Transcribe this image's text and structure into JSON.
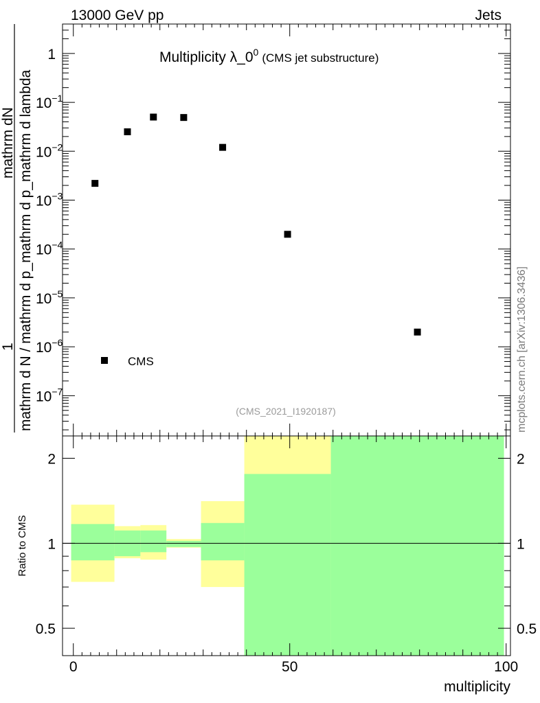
{
  "header": {
    "left": "13000 GeV pp",
    "right": "Jets"
  },
  "side_label": "mcplots.cern.ch [arXiv:1306.3436]",
  "colors": {
    "band_inner": "#9bff9b",
    "band_outer": "#ffff9b",
    "marker": "#000000"
  },
  "chart_data": [
    {
      "type": "scatter",
      "title": "Multiplicity λ_0",
      "title_superscript": "0",
      "subtitle": "(CMS jet substructure)",
      "analysis_id": "(CMS_2021_I1920187)",
      "ylabel": "1 / mathrm d N / mathrm d p_mathrm d p_mathrm d lambda · mathrm dN",
      "ylabel_numerator": "mathrm dN",
      "ylabel_denominator": "mathrm d N / mathrm d p_mathrm d p_mathrm d lambda",
      "ylabel_one": "1",
      "yscale": "log",
      "ylim": [
        1.5e-08,
        4
      ],
      "xlim": [
        -2.5,
        101
      ],
      "y_tick_labels": [
        {
          "value": 1,
          "label": "1"
        },
        {
          "value": 0.1,
          "label": "10",
          "exp": "−1"
        },
        {
          "value": 0.01,
          "label": "10",
          "exp": "−2"
        },
        {
          "value": 0.001,
          "label": "10",
          "exp": "−3"
        },
        {
          "value": 0.0001,
          "label": "10",
          "exp": "−4"
        },
        {
          "value": 1e-05,
          "label": "10",
          "exp": "−5"
        },
        {
          "value": 1e-06,
          "label": "10",
          "exp": "−6"
        },
        {
          "value": 1e-07,
          "label": "10",
          "exp": "−7"
        }
      ],
      "legend": {
        "position": "bottom-left",
        "entries": [
          "CMS"
        ]
      },
      "series": [
        {
          "name": "CMS",
          "marker": "square",
          "points": [
            {
              "x": 5,
              "y": 0.0022
            },
            {
              "x": 12.5,
              "y": 0.025
            },
            {
              "x": 18.5,
              "y": 0.05
            },
            {
              "x": 25.5,
              "y": 0.049
            },
            {
              "x": 34.5,
              "y": 0.012
            },
            {
              "x": 49.5,
              "y": 0.0002
            },
            {
              "x": 79.5,
              "y": 2e-06
            }
          ]
        }
      ]
    },
    {
      "type": "area",
      "ylabel": "Ratio to CMS",
      "xlabel": "multiplicity",
      "yscale": "log",
      "ylim": [
        0.4,
        2.4
      ],
      "xlim": [
        -2.5,
        101
      ],
      "x_ticks": [
        0,
        50,
        100
      ],
      "y_ticks": [
        {
          "value": 0.5,
          "label": "0.5"
        },
        {
          "value": 1,
          "label": "1"
        },
        {
          "value": 2,
          "label": "2"
        }
      ],
      "reference_line": 1,
      "bands": [
        {
          "x0": -0.5,
          "x1": 9.5,
          "inner": [
            0.87,
            1.17
          ],
          "outer": [
            0.73,
            1.37
          ]
        },
        {
          "x0": 9.5,
          "x1": 15.5,
          "inner": [
            0.9,
            1.11
          ],
          "outer": [
            0.885,
            1.15
          ]
        },
        {
          "x0": 15.5,
          "x1": 21.5,
          "inner": [
            0.93,
            1.11
          ],
          "outer": [
            0.875,
            1.16
          ]
        },
        {
          "x0": 21.5,
          "x1": 29.5,
          "inner": [
            0.97,
            1.02
          ],
          "outer": [
            0.965,
            1.035
          ]
        },
        {
          "x0": 29.5,
          "x1": 39.5,
          "inner": [
            0.87,
            1.18
          ],
          "outer": [
            0.7,
            1.41
          ]
        },
        {
          "x0": 39.5,
          "x1": 59.5,
          "inner": [
            0.4,
            1.76
          ],
          "outer": [
            0.4,
            2.4
          ]
        },
        {
          "x0": 59.5,
          "x1": 99.5,
          "inner": [
            0.4,
            2.4
          ],
          "outer": [
            0.4,
            2.4
          ]
        }
      ]
    }
  ]
}
